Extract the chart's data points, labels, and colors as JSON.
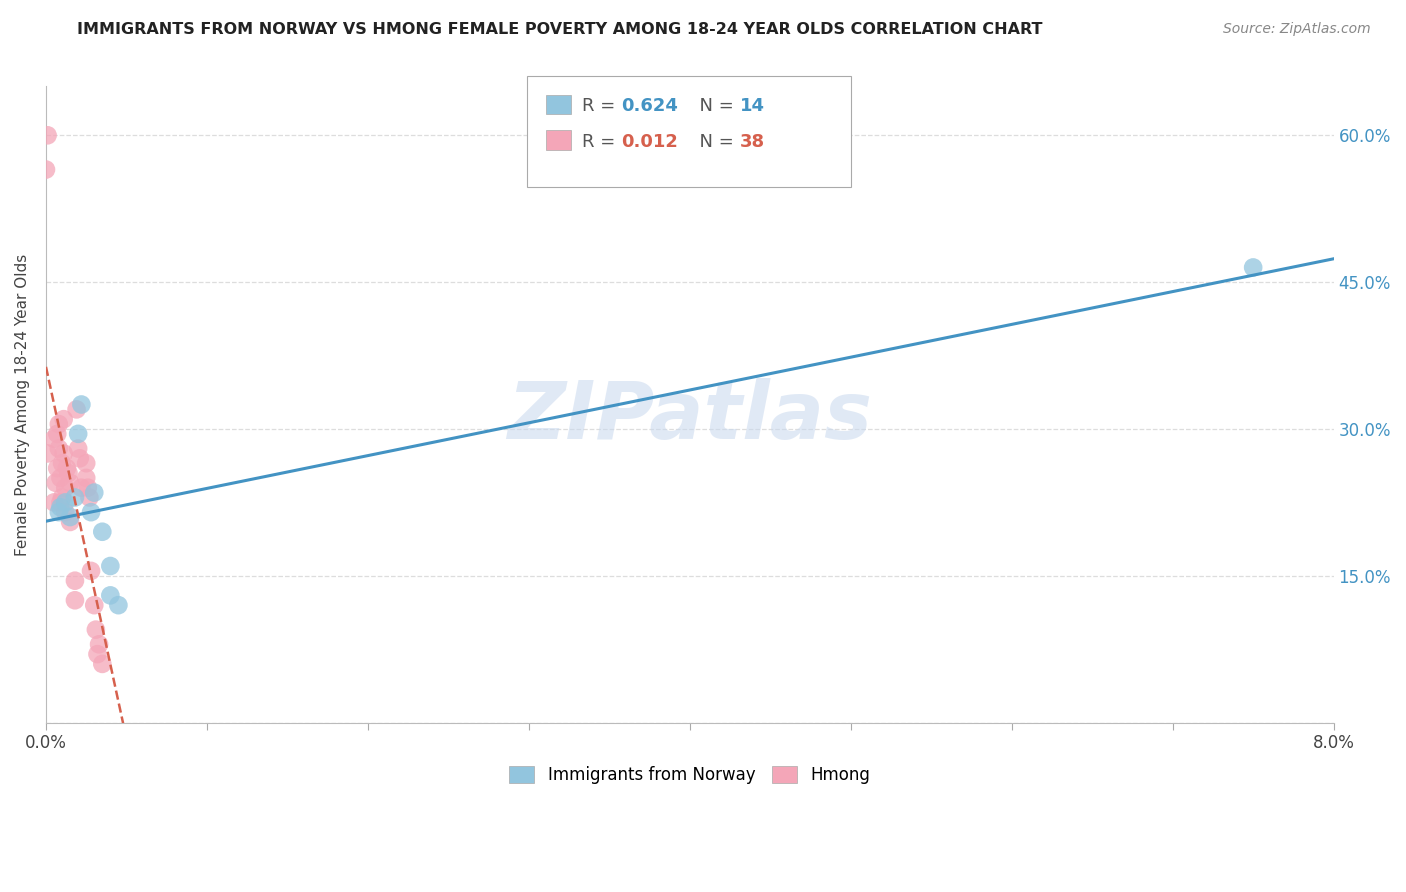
{
  "title": "IMMIGRANTS FROM NORWAY VS HMONG FEMALE POVERTY AMONG 18-24 YEAR OLDS CORRELATION CHART",
  "source": "Source: ZipAtlas.com",
  "ylabel": "Female Poverty Among 18-24 Year Olds",
  "xlim": [
    0.0,
    0.08
  ],
  "ylim": [
    0.0,
    0.65
  ],
  "xticks": [
    0.0,
    0.01,
    0.02,
    0.03,
    0.04,
    0.05,
    0.06,
    0.07,
    0.08
  ],
  "yticks": [
    0.0,
    0.15,
    0.3,
    0.45,
    0.6
  ],
  "right_ytick_labels": [
    "",
    "15.0%",
    "30.0%",
    "45.0%",
    "60.0%"
  ],
  "xtick_labels": [
    "0.0%",
    "",
    "",
    "",
    "",
    "",
    "",
    "",
    "8.0%"
  ],
  "norway_color": "#92c5de",
  "hmong_color": "#f4a6b8",
  "norway_line_color": "#4393c3",
  "hmong_line_color": "#d6604d",
  "norway_R": 0.624,
  "norway_N": 14,
  "hmong_R": 0.012,
  "hmong_N": 38,
  "watermark": "ZIPatlas",
  "norway_x": [
    0.0008,
    0.0009,
    0.0012,
    0.0015,
    0.0018,
    0.002,
    0.0022,
    0.0028,
    0.003,
    0.0035,
    0.004,
    0.004,
    0.0045,
    0.075
  ],
  "norway_y": [
    0.215,
    0.22,
    0.225,
    0.21,
    0.23,
    0.295,
    0.325,
    0.215,
    0.235,
    0.195,
    0.16,
    0.13,
    0.12,
    0.465
  ],
  "hmong_x": [
    0.0,
    0.0001,
    0.0001,
    0.0005,
    0.0005,
    0.0006,
    0.0007,
    0.0007,
    0.0008,
    0.0008,
    0.0009,
    0.0009,
    0.001,
    0.001,
    0.0011,
    0.0011,
    0.0012,
    0.0012,
    0.0013,
    0.0014,
    0.0015,
    0.0015,
    0.0018,
    0.0018,
    0.0019,
    0.002,
    0.0021,
    0.0022,
    0.0025,
    0.0025,
    0.0026,
    0.0027,
    0.0028,
    0.003,
    0.0031,
    0.0032,
    0.0033,
    0.0035
  ],
  "hmong_y": [
    0.565,
    0.6,
    0.275,
    0.29,
    0.225,
    0.245,
    0.295,
    0.26,
    0.28,
    0.305,
    0.25,
    0.225,
    0.265,
    0.23,
    0.31,
    0.275,
    0.24,
    0.215,
    0.26,
    0.255,
    0.245,
    0.205,
    0.145,
    0.125,
    0.32,
    0.28,
    0.27,
    0.24,
    0.265,
    0.25,
    0.24,
    0.23,
    0.155,
    0.12,
    0.095,
    0.07,
    0.08,
    0.06
  ],
  "legend_norway_label": "Immigrants from Norway",
  "legend_hmong_label": "Hmong"
}
